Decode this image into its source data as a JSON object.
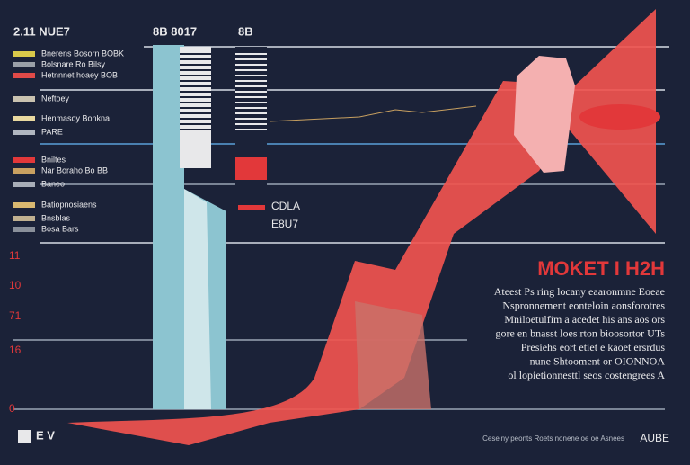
{
  "header": {
    "left": "2.11 NUE7",
    "center": "8B 8017",
    "right": "8B"
  },
  "legend": [
    {
      "label": "Bnerens Bosorn BOBK",
      "color": "#d9c94a"
    },
    {
      "label": "Bolsnare Ro Bilsy",
      "color": "#9aa0a8"
    },
    {
      "label": "Hetnnnet hoaey BOB",
      "color": "#e04a48"
    },
    {
      "label": "Neftoey",
      "color": "#c9c2b0"
    },
    {
      "label": "Henmasoy Bonkna",
      "color": "#e9d9a0"
    },
    {
      "label": "PARE",
      "color": "#b0b6c0"
    },
    {
      "label": "Bniltes",
      "color": "#e2383a"
    },
    {
      "label": "Nar Boraho Bo BB",
      "color": "#c8a060"
    },
    {
      "label": "Baneo",
      "color": "#a8aeb8"
    },
    {
      "label": "Batiopnosiaens",
      "color": "#d9b870"
    },
    {
      "label": "Bnsblas",
      "color": "#c0b090"
    },
    {
      "label": "Bosa Bars",
      "color": "#8a909a"
    }
  ],
  "axis_labels": [
    "11",
    "10",
    "71",
    "16",
    "0"
  ],
  "callouts": [
    "CDLA",
    "E8U7"
  ],
  "title": "MOKET I H2H",
  "paragraph": [
    "Ateest Ps ring locany eaaronmne Eoeae",
    "Nspronnement eonteloin aonsforotres",
    "Mniloetulfim a acedet his ans aos ors",
    "gore en bnasst loes rton bioosortor UTs",
    "Presiehs eort etiet e kaoet ersrdus",
    "nune Shtooment or OIONNOA",
    "ol lopietionnesttl seos costengrees A"
  ],
  "footer": {
    "left": "E V",
    "center": "Ceselny peonts Roets nonene oe oe Asnees",
    "right": "AUBE"
  }
}
